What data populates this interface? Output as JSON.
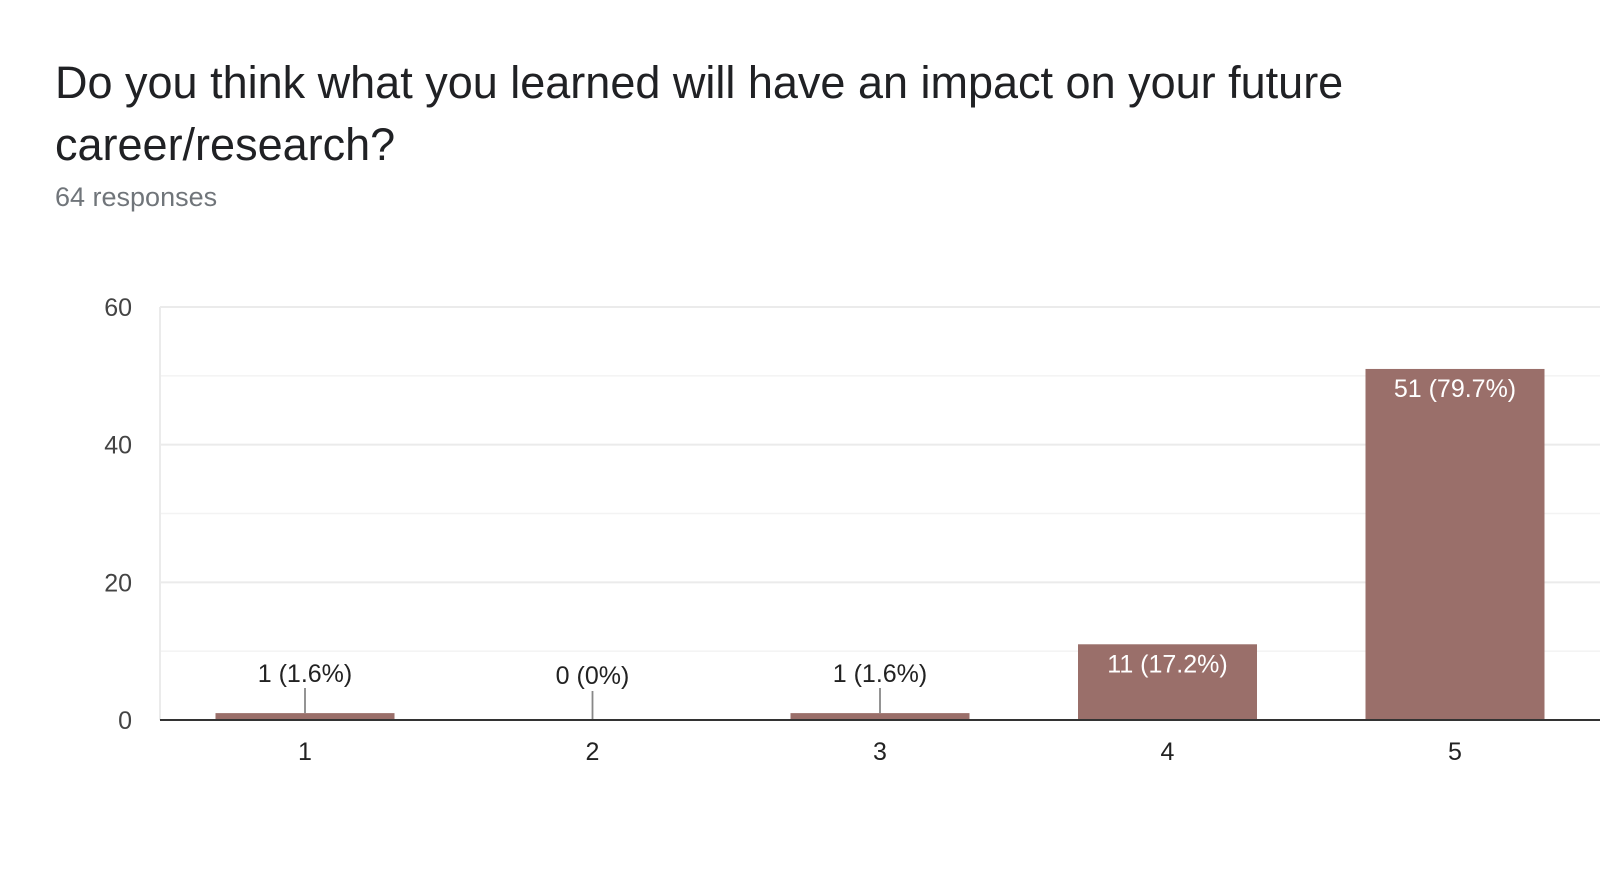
{
  "header": {
    "title": "Do you think what you learned will have an impact on your future career/research?",
    "responses": "64 responses"
  },
  "colors": {
    "bar": "#9a6f6a",
    "gridline": "#ebebeb",
    "baseline": "#333333",
    "label_inside": "#ffffff",
    "label_outside": "#222222"
  },
  "chart_data": {
    "type": "bar",
    "title": "Do you think what you learned will have an impact on your future career/research?",
    "xlabel": "",
    "ylabel": "",
    "categories": [
      "1",
      "2",
      "3",
      "4",
      "5"
    ],
    "values": [
      1,
      0,
      1,
      11,
      51
    ],
    "data_labels": [
      "1 (1.6%)",
      "0 (0%)",
      "1 (1.6%)",
      "11 (17.2%)",
      "51 (79.7%)"
    ],
    "ylim": [
      0,
      60
    ],
    "yticks": [
      0,
      20,
      40,
      60
    ],
    "minor_gridlines": [
      10,
      30,
      50
    ],
    "grid": true,
    "legend": "none"
  }
}
